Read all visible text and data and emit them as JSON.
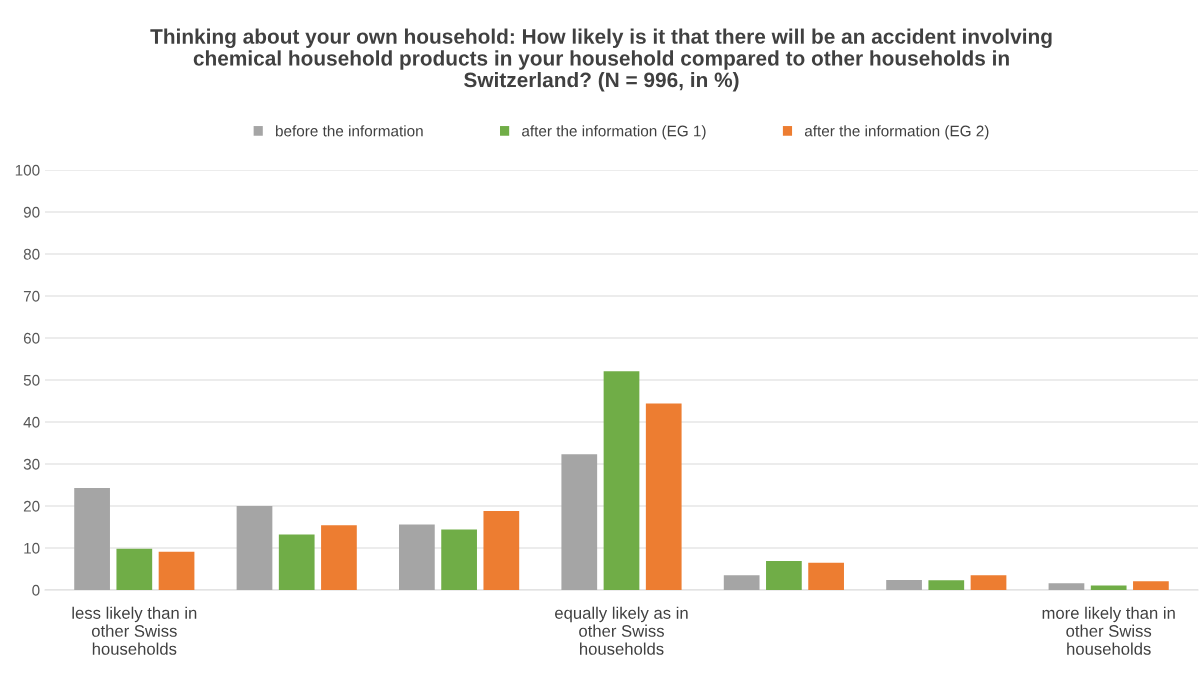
{
  "chart_data": {
    "type": "bar",
    "title": "Thinking about your own household: How likely is it that there will be an accident involving\nchemical household products in your household compared to other households in\nSwitzerland? (N = 996, in %)",
    "categories": [
      "less likely than in\nother Swiss\nhouseholds",
      null,
      null,
      "equally likely as in\nother Swiss\nhouseholds",
      null,
      null,
      "more likely than in\nother Swiss\nhouseholds"
    ],
    "series": [
      {
        "name": "before the information",
        "color": "#a5a5a5",
        "values": [
          24.3,
          20.0,
          15.6,
          32.3,
          3.5,
          2.4,
          1.6
        ]
      },
      {
        "name": "after the information (EG 1)",
        "color": "#70ad47",
        "values": [
          9.8,
          13.2,
          14.4,
          52.1,
          6.9,
          2.3,
          1.1
        ]
      },
      {
        "name": "after the information (EG 2)",
        "color": "#ed7d31",
        "values": [
          9.1,
          15.4,
          18.8,
          44.4,
          6.5,
          3.5,
          2.1
        ]
      }
    ],
    "ylim": [
      0,
      100
    ],
    "yticks": [
      0,
      10,
      20,
      30,
      40,
      50,
      60,
      70,
      80,
      90,
      100
    ],
    "grid": "y",
    "legend": "top"
  }
}
